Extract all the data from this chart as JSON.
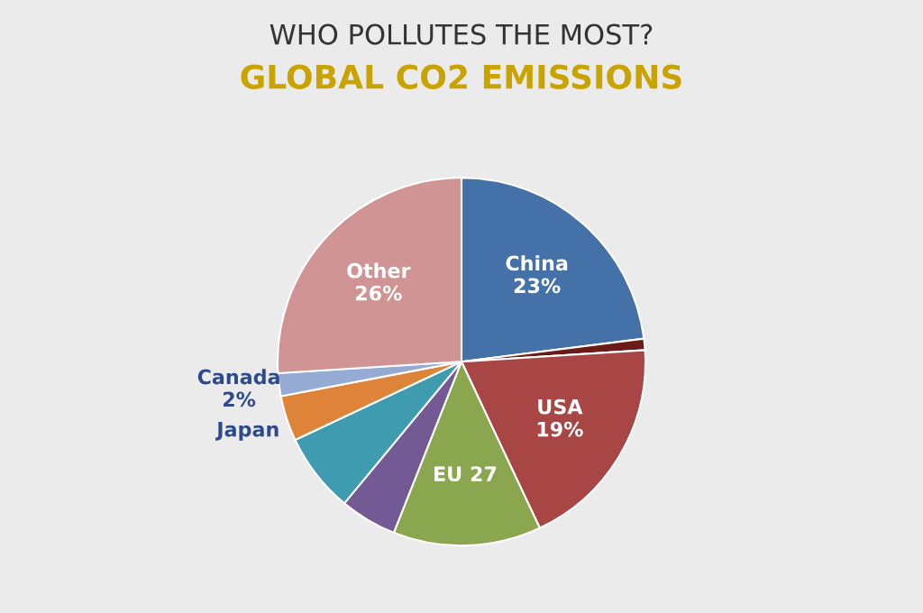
{
  "chart_data": {
    "type": "pie",
    "title": "WHO POLLUTES THE MOST?",
    "subtitle": "GLOBAL CO2 EMISSIONS",
    "categories": [
      "China",
      null,
      "USA",
      "EU 27",
      null,
      null,
      "Japan",
      "Canada",
      "Other"
    ],
    "values": [
      23,
      1,
      19,
      13,
      5,
      7,
      4,
      2,
      26
    ],
    "value_labels": [
      "23%",
      null,
      "19%",
      null,
      null,
      null,
      null,
      "2%",
      "26%"
    ],
    "colors": [
      "#4472a8",
      "#6b1a1a",
      "#a84545",
      "#8aa64e",
      "#735a94",
      "#3f9bb0",
      "#dd8438",
      "#95abd4",
      "#d09494"
    ]
  }
}
